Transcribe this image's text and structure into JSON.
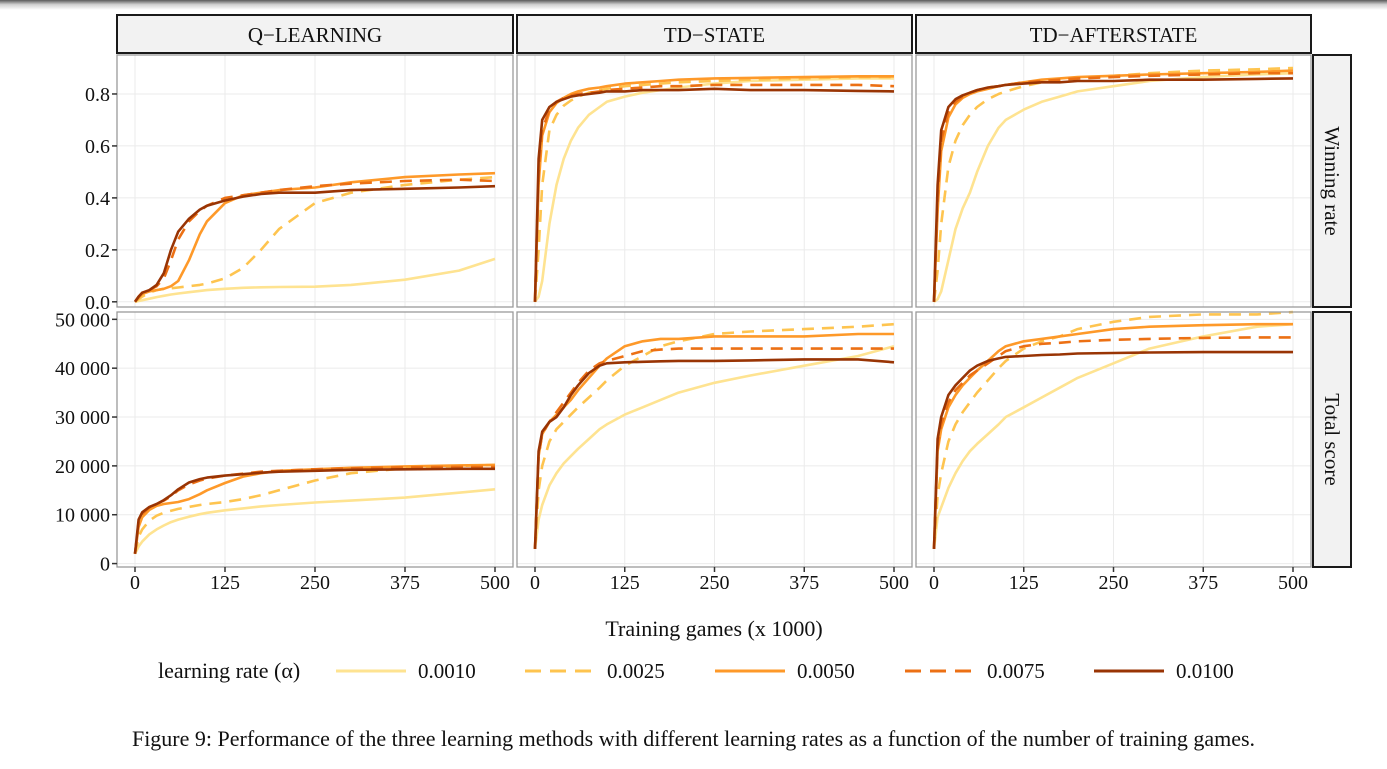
{
  "figure": {
    "caption": "Figure 9: Performance of the three learning methods with different learning rates as a function of the number of training games."
  },
  "chart_data": {
    "type": "line",
    "layout": "facet-grid",
    "columns": [
      "Q−LEARNING",
      "TD−STATE",
      "TD−AFTERSTATE"
    ],
    "rows": [
      "Winning  rate",
      "Total  score"
    ],
    "xlabel": "Training games (x 1000)",
    "xlim": [
      0,
      500
    ],
    "xticks": [
      0,
      125,
      250,
      375,
      500
    ],
    "xtick_labels": [
      "0",
      "125",
      "250",
      "375",
      "500"
    ],
    "grid": true,
    "y_axes": [
      {
        "row": "Winning  rate",
        "ylim": [
          -0.02,
          0.95
        ],
        "ticks": [
          0.0,
          0.2,
          0.4,
          0.6,
          0.8
        ],
        "tick_labels": [
          "0.0",
          "0.2",
          "0.4",
          "0.6",
          "0.8"
        ]
      },
      {
        "row": "Total  score",
        "ylim": [
          -700,
          51500
        ],
        "ticks": [
          0,
          10000,
          20000,
          30000,
          40000,
          50000
        ],
        "tick_labels": [
          "0",
          "10 000",
          "20 000",
          "30 000",
          "40 000",
          "50 000"
        ]
      }
    ],
    "legend": {
      "title": "learning rate (α)",
      "position": "bottom",
      "entries": [
        {
          "label": "0.0010",
          "color": "#FEE391",
          "dash": "solid"
        },
        {
          "label": "0.0025",
          "color": "#FEC44F",
          "dash": "dashed"
        },
        {
          "label": "0.0050",
          "color": "#FE9929",
          "dash": "solid"
        },
        {
          "label": "0.0075",
          "color": "#EC7014",
          "dash": "dashed"
        },
        {
          "label": "0.0100",
          "color": "#993404",
          "dash": "solid"
        }
      ]
    },
    "x": [
      0,
      5,
      10,
      20,
      30,
      40,
      50,
      60,
      75,
      90,
      100,
      125,
      150,
      175,
      200,
      250,
      300,
      375,
      450,
      500
    ],
    "panels": [
      {
        "column": "Q−LEARNING",
        "row": "Winning  rate",
        "series": [
          {
            "name": "0.0010",
            "values": [
              0.0,
              0.003,
              0.006,
              0.012,
              0.018,
              0.023,
              0.028,
              0.032,
              0.037,
              0.042,
              0.045,
              0.05,
              0.054,
              0.056,
              0.057,
              0.058,
              0.065,
              0.085,
              0.12,
              0.165
            ]
          },
          {
            "name": "0.0025",
            "values": [
              0.0,
              0.01,
              0.02,
              0.035,
              0.045,
              0.05,
              0.052,
              0.055,
              0.06,
              0.065,
              0.07,
              0.09,
              0.13,
              0.2,
              0.28,
              0.38,
              0.42,
              0.45,
              0.47,
              0.48
            ]
          },
          {
            "name": "0.0050",
            "values": [
              0.0,
              0.015,
              0.03,
              0.04,
              0.045,
              0.05,
              0.06,
              0.08,
              0.16,
              0.26,
              0.31,
              0.38,
              0.41,
              0.42,
              0.43,
              0.44,
              0.46,
              0.48,
              0.49,
              0.495
            ]
          },
          {
            "name": "0.0075",
            "values": [
              0.0,
              0.02,
              0.035,
              0.045,
              0.06,
              0.09,
              0.16,
              0.24,
              0.31,
              0.35,
              0.37,
              0.4,
              0.41,
              0.42,
              0.43,
              0.445,
              0.455,
              0.465,
              0.47,
              0.465
            ]
          },
          {
            "name": "0.0100",
            "values": [
              0.0,
              0.02,
              0.035,
              0.045,
              0.065,
              0.11,
              0.2,
              0.27,
              0.32,
              0.355,
              0.37,
              0.39,
              0.405,
              0.415,
              0.42,
              0.42,
              0.43,
              0.435,
              0.44,
              0.445
            ]
          }
        ]
      },
      {
        "column": "TD−STATE",
        "row": "Winning  rate",
        "series": [
          {
            "name": "0.0010",
            "values": [
              0.0,
              0.02,
              0.08,
              0.3,
              0.45,
              0.55,
              0.62,
              0.67,
              0.72,
              0.75,
              0.77,
              0.79,
              0.805,
              0.815,
              0.825,
              0.84,
              0.85,
              0.855,
              0.86,
              0.86
            ]
          },
          {
            "name": "0.0025",
            "values": [
              0.0,
              0.2,
              0.45,
              0.66,
              0.72,
              0.755,
              0.775,
              0.79,
              0.805,
              0.815,
              0.82,
              0.83,
              0.835,
              0.84,
              0.845,
              0.85,
              0.855,
              0.86,
              0.865,
              0.865
            ]
          },
          {
            "name": "0.0050",
            "values": [
              0.0,
              0.45,
              0.64,
              0.73,
              0.765,
              0.785,
              0.8,
              0.81,
              0.82,
              0.825,
              0.83,
              0.84,
              0.845,
              0.85,
              0.855,
              0.86,
              0.862,
              0.865,
              0.868,
              0.868
            ]
          },
          {
            "name": "0.0075",
            "values": [
              0.0,
              0.5,
              0.66,
              0.74,
              0.77,
              0.785,
              0.795,
              0.8,
              0.805,
              0.81,
              0.815,
              0.82,
              0.825,
              0.83,
              0.83,
              0.835,
              0.835,
              0.835,
              0.835,
              0.83
            ]
          },
          {
            "name": "0.0100",
            "values": [
              0.0,
              0.55,
              0.7,
              0.75,
              0.77,
              0.78,
              0.79,
              0.795,
              0.8,
              0.805,
              0.81,
              0.81,
              0.815,
              0.815,
              0.815,
              0.82,
              0.815,
              0.815,
              0.812,
              0.81
            ]
          }
        ]
      },
      {
        "column": "TD−AFTERSTATE",
        "row": "Winning  rate",
        "series": [
          {
            "name": "0.0010",
            "values": [
              0.0,
              0.01,
              0.04,
              0.16,
              0.28,
              0.36,
              0.42,
              0.5,
              0.6,
              0.67,
              0.7,
              0.74,
              0.77,
              0.79,
              0.81,
              0.83,
              0.85,
              0.865,
              0.875,
              0.88
            ]
          },
          {
            "name": "0.0025",
            "values": [
              0.0,
              0.12,
              0.3,
              0.52,
              0.62,
              0.68,
              0.72,
              0.75,
              0.78,
              0.8,
              0.81,
              0.83,
              0.845,
              0.855,
              0.86,
              0.87,
              0.88,
              0.89,
              0.895,
              0.9
            ]
          },
          {
            "name": "0.0050",
            "values": [
              0.0,
              0.35,
              0.58,
              0.71,
              0.76,
              0.785,
              0.8,
              0.81,
              0.82,
              0.83,
              0.835,
              0.845,
              0.855,
              0.86,
              0.865,
              0.87,
              0.875,
              0.88,
              0.885,
              0.89
            ]
          },
          {
            "name": "0.0075",
            "values": [
              0.0,
              0.4,
              0.62,
              0.73,
              0.77,
              0.79,
              0.805,
              0.815,
              0.825,
              0.83,
              0.835,
              0.845,
              0.85,
              0.855,
              0.86,
              0.865,
              0.87,
              0.875,
              0.88,
              0.88
            ]
          },
          {
            "name": "0.0100",
            "values": [
              0.0,
              0.45,
              0.66,
              0.75,
              0.78,
              0.795,
              0.805,
              0.815,
              0.825,
              0.83,
              0.835,
              0.84,
              0.845,
              0.845,
              0.85,
              0.85,
              0.855,
              0.855,
              0.858,
              0.86
            ]
          }
        ]
      },
      {
        "column": "Q−LEARNING",
        "row": "Total  score",
        "series": [
          {
            "name": "0.0010",
            "values": [
              2000,
              3500,
              4500,
              6000,
              7000,
              7800,
              8500,
              9000,
              9600,
              10100,
              10400,
              10900,
              11300,
              11700,
              12000,
              12500,
              12900,
              13500,
              14500,
              15200
            ]
          },
          {
            "name": "0.0025",
            "values": [
              2000,
              5500,
              7000,
              8800,
              9800,
              10400,
              10800,
              11200,
              11600,
              12000,
              12200,
              12600,
              13200,
              14000,
              15000,
              17000,
              18500,
              19500,
              20000,
              20200
            ]
          },
          {
            "name": "0.0050",
            "values": [
              2000,
              7500,
              9500,
              11000,
              11800,
              12200,
              12400,
              12600,
              13200,
              14200,
              15000,
              16500,
              17800,
              18500,
              19000,
              19300,
              19600,
              19900,
              20100,
              20200
            ]
          },
          {
            "name": "0.0075",
            "values": [
              2000,
              8500,
              10200,
              11500,
              12200,
              12900,
              13800,
              15000,
              16200,
              17000,
              17400,
              18000,
              18400,
              18800,
              19000,
              19300,
              19500,
              19700,
              19800,
              19800
            ]
          },
          {
            "name": "0.0100",
            "values": [
              2000,
              9000,
              10500,
              11600,
              12200,
              13000,
              14000,
              15200,
              16600,
              17300,
              17600,
              18000,
              18300,
              18600,
              18800,
              19000,
              19200,
              19300,
              19400,
              19400
            ]
          }
        ]
      },
      {
        "column": "TD−STATE",
        "row": "Total  score",
        "series": [
          {
            "name": "0.0010",
            "values": [
              3000,
              9000,
              12000,
              16000,
              18500,
              20500,
              22000,
              23500,
              25500,
              27500,
              28500,
              30500,
              32000,
              33500,
              35000,
              37000,
              38500,
              40500,
              42500,
              44500
            ]
          },
          {
            "name": "0.0025",
            "values": [
              3000,
              15000,
              20000,
              25000,
              27500,
              29000,
              30500,
              32000,
              34000,
              36000,
              37500,
              40500,
              42500,
              44500,
              45500,
              47000,
              47500,
              48000,
              48500,
              49000
            ]
          },
          {
            "name": "0.0050",
            "values": [
              3000,
              22000,
              26500,
              29000,
              30500,
              32000,
              33500,
              35500,
              38000,
              40500,
              42000,
              44500,
              45500,
              46000,
              46000,
              46500,
              46500,
              46500,
              47000,
              47000
            ]
          },
          {
            "name": "0.0075",
            "values": [
              3000,
              22000,
              26500,
              29000,
              31000,
              33000,
              35000,
              37000,
              39500,
              41000,
              41500,
              42500,
              43500,
              43800,
              44000,
              44000,
              44000,
              44000,
              44000,
              44000
            ]
          },
          {
            "name": "0.0100",
            "values": [
              3000,
              23000,
              27000,
              29000,
              30000,
              32000,
              34500,
              36500,
              39000,
              40500,
              41000,
              41200,
              41300,
              41400,
              41500,
              41500,
              41600,
              41800,
              41800,
              41200
            ]
          }
        ]
      },
      {
        "column": "TD−AFTERSTATE",
        "row": "Total  score",
        "series": [
          {
            "name": "0.0010",
            "values": [
              3000,
              9500,
              11500,
              15500,
              18500,
              21000,
              23000,
              24500,
              26500,
              28500,
              30000,
              32000,
              34000,
              36000,
              38000,
              41000,
              44000,
              46500,
              48500,
              49000
            ]
          },
          {
            "name": "0.0025",
            "values": [
              3000,
              14000,
              18500,
              25000,
              28500,
              31000,
              33000,
              35000,
              37500,
              40000,
              41500,
              44000,
              45500,
              46500,
              48000,
              49500,
              50500,
              51000,
              51000,
              51500
            ]
          },
          {
            "name": "0.0050",
            "values": [
              3000,
              23000,
              27500,
              32000,
              34500,
              36500,
              38000,
              39500,
              41500,
              43500,
              44500,
              45500,
              46000,
              46500,
              47000,
              48000,
              48500,
              48800,
              49000,
              49000
            ]
          },
          {
            "name": "0.0075",
            "values": [
              3000,
              24000,
              28500,
              33000,
              35500,
              37000,
              38500,
              39500,
              41000,
              42500,
              43500,
              44500,
              45000,
              45200,
              45500,
              45800,
              46000,
              46200,
              46300,
              46300
            ]
          },
          {
            "name": "0.0100",
            "values": [
              3000,
              25500,
              30000,
              34500,
              36500,
              38000,
              39500,
              40500,
              41500,
              42000,
              42300,
              42500,
              42700,
              42800,
              43000,
              43100,
              43200,
              43300,
              43300,
              43300
            ]
          }
        ]
      }
    ]
  }
}
